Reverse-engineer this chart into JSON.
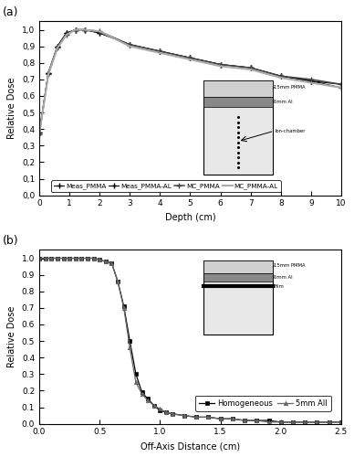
{
  "panel_a": {
    "xlabel": "Depth (cm)",
    "ylabel": "Relative Dose",
    "xlim": [
      0,
      10
    ],
    "ylim": [
      0,
      1.05
    ],
    "yticks": [
      0,
      0.1,
      0.2,
      0.3,
      0.4,
      0.5,
      0.6,
      0.7,
      0.8,
      0.9,
      1.0
    ],
    "xticks": [
      0,
      1,
      2,
      3,
      4,
      5,
      6,
      7,
      8,
      9,
      10
    ],
    "meas_pmma_x": [
      0.0,
      0.3,
      0.6,
      0.9,
      1.2,
      1.5,
      2.0,
      3.0,
      4.0,
      5.0,
      6.0,
      7.0,
      8.0,
      9.0,
      10.0
    ],
    "meas_pmma_y": [
      0.38,
      0.74,
      0.9,
      0.98,
      1.0,
      1.0,
      0.98,
      0.91,
      0.87,
      0.83,
      0.79,
      0.77,
      0.72,
      0.69,
      0.67
    ],
    "meas_pmma_al_x": [
      0.0,
      0.3,
      0.6,
      0.9,
      1.2,
      1.5,
      2.0,
      3.0,
      4.0,
      5.0,
      6.0,
      7.0,
      8.0,
      9.0,
      10.0
    ],
    "meas_pmma_al_y": [
      0.38,
      0.74,
      0.9,
      0.98,
      1.0,
      1.0,
      0.98,
      0.91,
      0.87,
      0.83,
      0.79,
      0.77,
      0.72,
      0.69,
      0.65
    ],
    "mc_pmma_x": [
      0.0,
      0.3,
      0.6,
      0.9,
      1.2,
      1.5,
      2.0,
      3.0,
      4.0,
      5.0,
      6.0,
      7.0,
      8.0,
      9.0,
      10.0
    ],
    "mc_pmma_y": [
      0.37,
      0.73,
      0.89,
      0.97,
      1.0,
      1.0,
      0.99,
      0.91,
      0.87,
      0.83,
      0.79,
      0.77,
      0.72,
      0.7,
      0.67
    ],
    "mc_pmma_al_x": [
      0.0,
      0.3,
      0.6,
      0.9,
      1.2,
      1.5,
      2.0,
      3.0,
      4.0,
      5.0,
      6.0,
      7.0,
      8.0,
      9.0,
      10.0
    ],
    "mc_pmma_al_y": [
      0.37,
      0.73,
      0.89,
      0.97,
      1.0,
      1.0,
      0.99,
      0.9,
      0.86,
      0.82,
      0.78,
      0.76,
      0.71,
      0.68,
      0.65
    ],
    "legend_labels": [
      "Meas_PMMA",
      "Meas_PMMA-AL",
      "MC_PMMA",
      "MC_PMMA-AL"
    ]
  },
  "panel_b": {
    "xlabel": "Off-Axis Distance (cm)",
    "ylabel": "Relative Dose",
    "xlim": [
      0,
      2.5
    ],
    "ylim": [
      0,
      1.05
    ],
    "yticks": [
      0.0,
      0.1,
      0.2,
      0.3,
      0.4,
      0.5,
      0.6,
      0.7,
      0.8,
      0.9,
      1.0
    ],
    "xticks": [
      0,
      0.5,
      1.0,
      1.5,
      2.0,
      2.5
    ],
    "homogeneous_x": [
      0.0,
      0.05,
      0.1,
      0.15,
      0.2,
      0.25,
      0.3,
      0.35,
      0.4,
      0.45,
      0.5,
      0.55,
      0.6,
      0.65,
      0.7,
      0.75,
      0.8,
      0.85,
      0.9,
      0.95,
      1.0,
      1.05,
      1.1,
      1.2,
      1.3,
      1.4,
      1.5,
      1.6,
      1.7,
      1.8,
      1.9,
      2.0,
      2.1,
      2.2,
      2.3,
      2.4,
      2.5
    ],
    "homogeneous_y": [
      1.0,
      1.0,
      1.0,
      1.0,
      1.0,
      1.0,
      1.0,
      1.0,
      1.0,
      1.0,
      0.99,
      0.98,
      0.97,
      0.86,
      0.71,
      0.5,
      0.3,
      0.19,
      0.15,
      0.11,
      0.08,
      0.07,
      0.06,
      0.05,
      0.04,
      0.04,
      0.03,
      0.03,
      0.02,
      0.02,
      0.02,
      0.01,
      0.01,
      0.01,
      0.01,
      0.01,
      0.01
    ],
    "al5mm_x": [
      0.0,
      0.05,
      0.1,
      0.15,
      0.2,
      0.25,
      0.3,
      0.35,
      0.4,
      0.45,
      0.5,
      0.55,
      0.6,
      0.65,
      0.7,
      0.75,
      0.8,
      0.85,
      0.9,
      0.95,
      1.0,
      1.05,
      1.1,
      1.2,
      1.3,
      1.4,
      1.5,
      1.6,
      1.7,
      1.8,
      1.9,
      2.0,
      2.1,
      2.2,
      2.3,
      2.4,
      2.5
    ],
    "al5mm_y": [
      1.0,
      1.0,
      1.0,
      1.0,
      1.0,
      1.0,
      1.0,
      1.0,
      1.0,
      1.0,
      0.99,
      0.98,
      0.97,
      0.86,
      0.7,
      0.46,
      0.25,
      0.18,
      0.14,
      0.11,
      0.09,
      0.07,
      0.06,
      0.05,
      0.04,
      0.04,
      0.03,
      0.03,
      0.02,
      0.02,
      0.01,
      0.01,
      0.01,
      0.01,
      0.01,
      0.01,
      0.01
    ],
    "legend_labels": [
      "Homogeneous",
      "5mm All"
    ]
  }
}
